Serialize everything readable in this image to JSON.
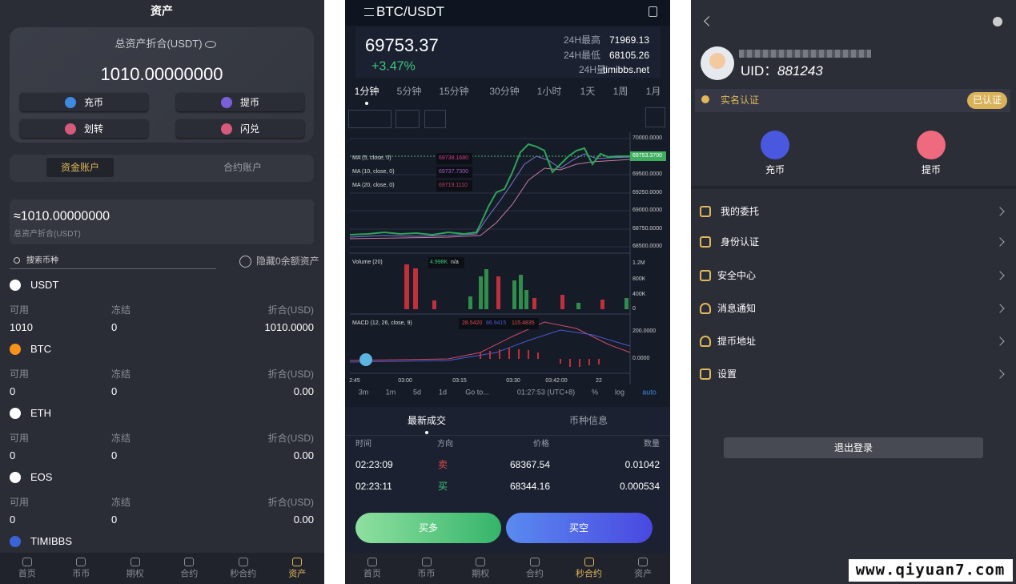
{
  "assets_screen": {
    "title": "资产",
    "total_label": "总资产折合(USDT)",
    "total": "1010.00000000",
    "buttons": [
      "充币",
      "提币",
      "划转",
      "闪兑"
    ],
    "account_tabs": [
      "资金账户",
      "合约账户"
    ],
    "balance": "≈1010.00000000",
    "balance_label": "总资产折合(USDT)",
    "search_placeholder": "搜索币种",
    "hide_zero": "隐藏0余额资产",
    "column_headers": [
      "可用",
      "冻结",
      "折合(USD)"
    ],
    "coins": [
      {
        "name": "USDT",
        "available": "1010",
        "frozen": "0",
        "value": "1010.0000"
      },
      {
        "name": "BTC",
        "available": "0",
        "frozen": "0",
        "value": "0.00"
      },
      {
        "name": "ETH",
        "available": "0",
        "frozen": "0",
        "value": "0.00"
      },
      {
        "name": "EOS",
        "available": "0",
        "frozen": "0",
        "value": "0.00"
      },
      {
        "name": "TIMIBBS"
      }
    ]
  },
  "nav": [
    "首页",
    "币币",
    "期权",
    "合约",
    "秒合约",
    "资产"
  ],
  "trade_screen": {
    "pair": "BTC/USDT",
    "price": "69753.37",
    "change": "+3.47%",
    "stats": [
      {
        "label": "24H最高",
        "value": "71969.13"
      },
      {
        "label": "24H最低",
        "value": "68105.26"
      },
      {
        "label": "24H量",
        "value": "timibbs.net"
      }
    ],
    "intervals": [
      "1分钟",
      "5分钟",
      "15分钟",
      "30分钟",
      "1小时",
      "1天",
      "1周",
      "1月"
    ],
    "ma": [
      {
        "name": "MA (5, close, 0)",
        "value": "69738.1680"
      },
      {
        "name": "MA (10, close, 0)",
        "value": "69737.7300"
      },
      {
        "name": "MA (20, close, 0)",
        "value": "69719.1110"
      }
    ],
    "price_axis": [
      "70000.0000",
      "69753.3700",
      "69500.0000",
      "69250.0000",
      "69000.0000",
      "68750.0000",
      "68500.0000"
    ],
    "volume_label": "Volume (20)",
    "volume_values": [
      "4.998K",
      "n/a"
    ],
    "volume_axis": [
      "1.2M",
      "800K",
      "400K",
      "0"
    ],
    "macd_label": "MACD (12, 26, close, 9)",
    "macd_values": [
      "28.5420",
      "86.9415",
      "115.4835"
    ],
    "macd_axis": [
      "200.0000",
      "0.0000"
    ],
    "time_axis": [
      "2:45",
      "03:00",
      "03:15",
      "03:30",
      "03:42:00",
      "22"
    ],
    "toolbar": [
      "3m",
      "1m",
      "5d",
      "1d",
      "Go to...",
      "01:27:53 (UTC+8)",
      "%",
      "log",
      "auto"
    ],
    "tabs": [
      "最新成交",
      "币种信息"
    ],
    "trade_headers": [
      "时间",
      "方向",
      "价格",
      "数量"
    ],
    "trades": [
      [
        "02:23:09",
        "卖",
        "68367.54",
        "0.01042"
      ],
      [
        "02:23:11",
        "买",
        "68344.16",
        "0.000534"
      ]
    ],
    "actions": [
      "买多",
      "买空"
    ]
  },
  "profile_screen": {
    "uid_label": "UID：",
    "uid": "881243",
    "verify": "实名认证",
    "verified": "已认证",
    "actions": [
      "充币",
      "提币"
    ],
    "menu": [
      "我的委托",
      "身份认证",
      "安全中心",
      "消息通知",
      "提币地址",
      "设置"
    ],
    "logout": "退出登录"
  },
  "watermark": "www.qiyuan7.com"
}
